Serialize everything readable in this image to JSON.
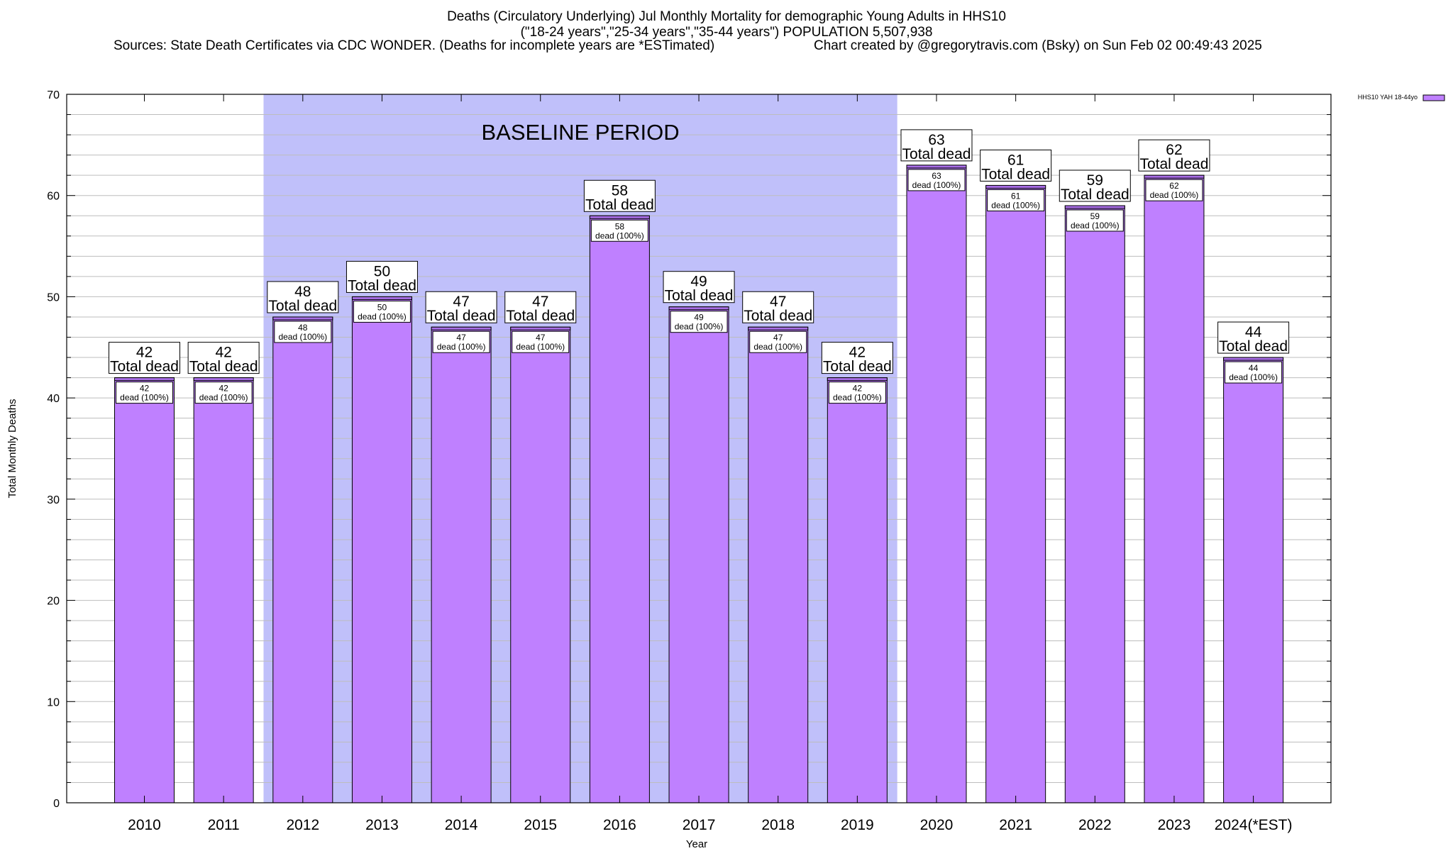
{
  "header": {
    "title_line1": "Deaths (Circulatory Underlying) Jul Monthly Mortality for demographic Young Adults in HHS10",
    "title_line2": "(\"18-24 years\",\"25-34 years\",\"35-44 years\") POPULATION 5,507,938",
    "sources": "Sources: State Death Certificates via CDC WONDER. (Deaths for incomplete years are *ESTimated)",
    "credit": "Chart created by @gregorytravis.com (Bsky) on Sun Feb 02 00:49:43 2025"
  },
  "chart_data": {
    "type": "bar",
    "xlabel": "Year",
    "ylabel": "Total Monthly Deaths",
    "ylim": [
      0,
      70
    ],
    "y_ticks": [
      0,
      10,
      20,
      30,
      40,
      50,
      60,
      70
    ],
    "grid": true,
    "legend": {
      "placement": "top-right",
      "entries": [
        "HHS10 YAH 18-44yo"
      ]
    },
    "categories": [
      "2010",
      "2011",
      "2012",
      "2013",
      "2014",
      "2015",
      "2016",
      "2017",
      "2018",
      "2019",
      "2020",
      "2021",
      "2022",
      "2023",
      "2024(*EST)"
    ],
    "series": [
      {
        "name": "HHS10 YAH 18-44yo",
        "values": [
          42,
          42,
          48,
          50,
          47,
          47,
          58,
          49,
          47,
          42,
          63,
          61,
          59,
          62,
          44
        ]
      }
    ],
    "total_label": "Total dead",
    "inner_label_suffix": "dead (100%)",
    "baseline_period": {
      "label": "BASELINE PERIOD",
      "start": "2012",
      "end": "2019"
    }
  },
  "colors": {
    "bar_fill": "#bf80ff",
    "bar_top_band": "#a86de6",
    "baseline_shade": "#c0c0fa",
    "grid": "#bdbdbd"
  }
}
